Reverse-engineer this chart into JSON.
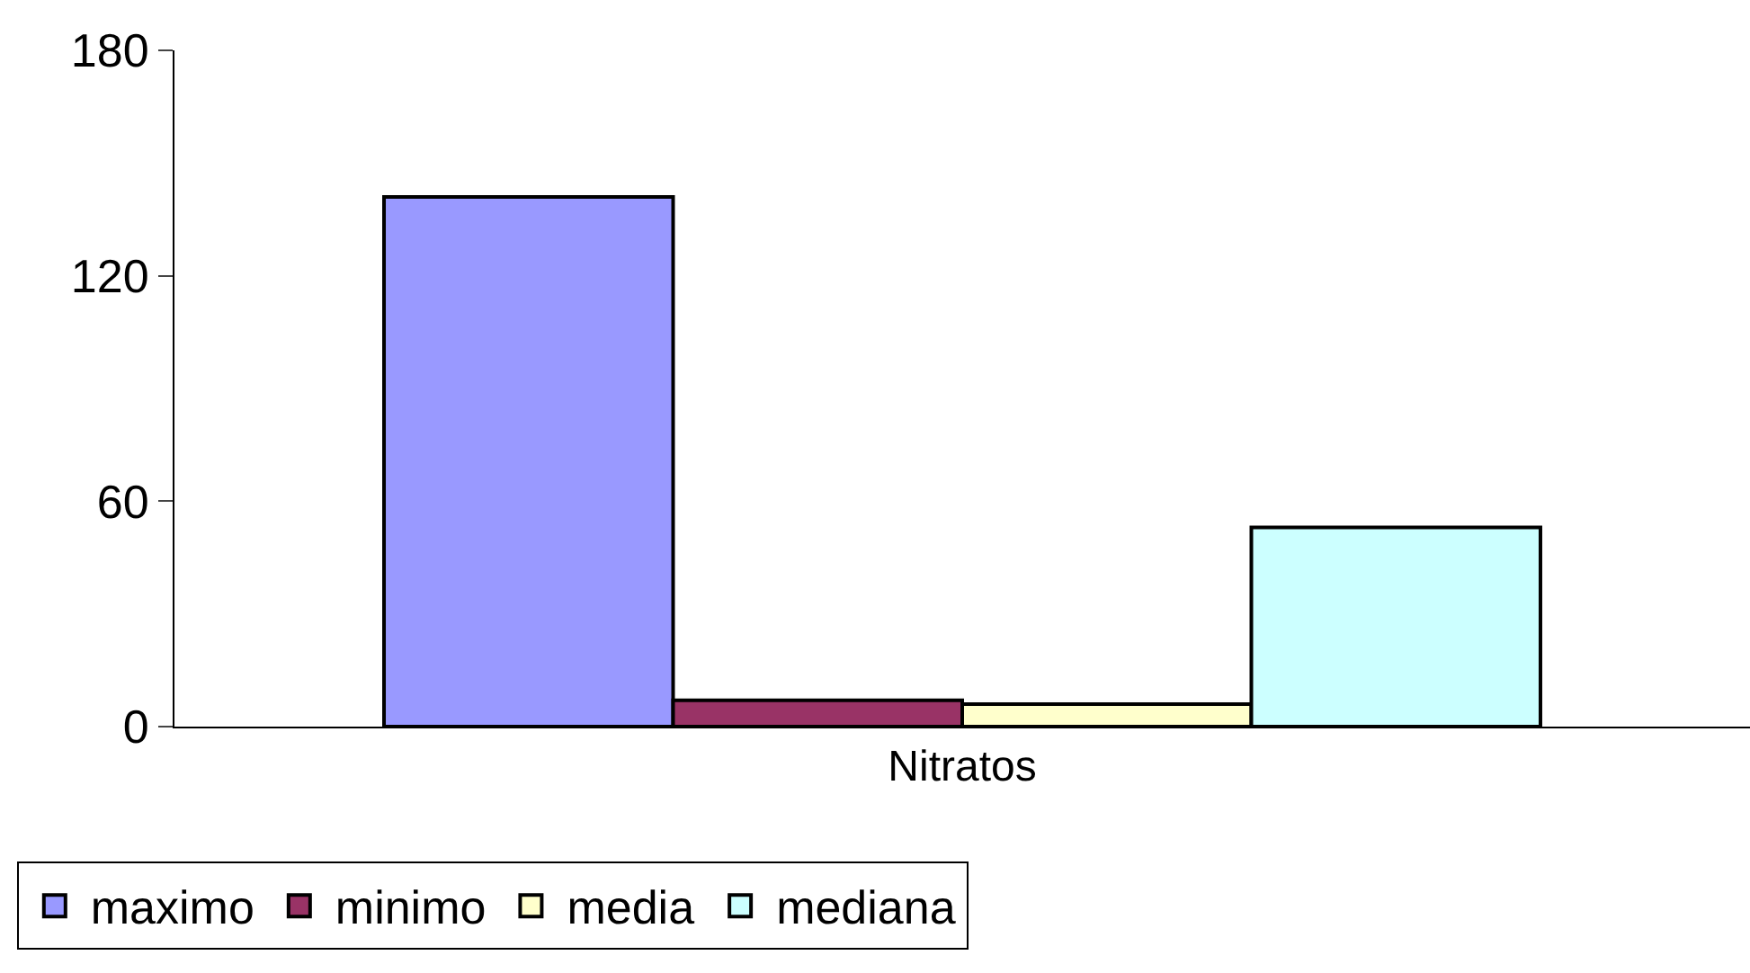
{
  "chart_data": {
    "type": "bar",
    "categories": [
      "Nitratos"
    ],
    "series": [
      {
        "name": "maximo",
        "color": "#9999ff",
        "values": [
          141
        ]
      },
      {
        "name": "minimo",
        "color": "#993366",
        "values": [
          7
        ]
      },
      {
        "name": "media",
        "color": "#ffffcc",
        "values": [
          6
        ]
      },
      {
        "name": "mediana",
        "color": "#ccffff",
        "values": [
          53
        ]
      }
    ],
    "ylim": [
      0,
      180
    ],
    "yticks": [
      0,
      60,
      120,
      180
    ],
    "grid": false,
    "legend": "bottom left"
  }
}
